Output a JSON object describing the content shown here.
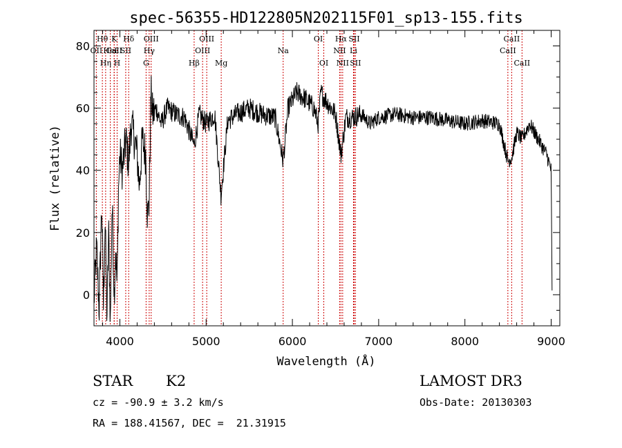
{
  "chart_data": {
    "type": "line",
    "title": "spec-56355-HD122805N202115F01_sp13-155.fits",
    "xlabel": "Wavelength (Å)",
    "ylabel": "Flux (relative)",
    "xlim": [
      3700,
      9100
    ],
    "ylim": [
      -10,
      85
    ],
    "xticks": [
      4000,
      5000,
      6000,
      7000,
      8000,
      9000
    ],
    "yticks": [
      0,
      20,
      40,
      60,
      80
    ],
    "grid": false,
    "series": [
      {
        "x": [
          3700,
          3730,
          3760,
          3790,
          3810,
          3830,
          3850,
          3870,
          3890,
          3910,
          3935,
          3950,
          3968,
          3985,
          4000,
          4030,
          4070,
          4102,
          4130,
          4170,
          4200,
          4226,
          4260,
          4300,
          4320,
          4340,
          4360,
          4380,
          4420,
          4480,
          4550,
          4650,
          4750,
          4861,
          4920,
          5000,
          5100,
          5172,
          5250,
          5350,
          5500,
          5650,
          5800,
          5893,
          5950,
          6050,
          6150,
          6250,
          6300,
          6330,
          6400,
          6500,
          6563,
          6620,
          6700,
          6800,
          6900,
          7000,
          7200,
          7400,
          7600,
          7800,
          8000,
          8200,
          8400,
          8498,
          8542,
          8600,
          8662,
          8750,
          8850,
          8950,
          9000,
          9010
        ],
        "values": [
          -2,
          15,
          -5,
          30,
          -4,
          25,
          -8,
          20,
          -9,
          30,
          0,
          15,
          2,
          35,
          45,
          40,
          50,
          42,
          55,
          50,
          45,
          35,
          50,
          45,
          25,
          30,
          65,
          58,
          60,
          55,
          60,
          58,
          57,
          48,
          58,
          55,
          58,
          32,
          56,
          58,
          60,
          58,
          57,
          43,
          60,
          65,
          63,
          60,
          55,
          65,
          62,
          58,
          45,
          57,
          57,
          58,
          55,
          57,
          58,
          57,
          57,
          56,
          55,
          56,
          55,
          43,
          44,
          52,
          50,
          55,
          50,
          45,
          40,
          0
        ]
      }
    ],
    "line_markers": [
      {
        "name": "CaII",
        "label": "CaII",
        "x": 3934,
        "row": 1
      },
      {
        "name": "CaII-H",
        "label": "H",
        "x": 3968,
        "row": 2
      },
      {
        "name": "H-theta",
        "label": "Hθ",
        "x": 3797,
        "row": 0
      },
      {
        "name": "OII",
        "label": "OII",
        "x": 3727,
        "row": 1
      },
      {
        "name": "HeI",
        "label": "HeI",
        "x": 3889,
        "row": 1
      },
      {
        "name": "H-eta",
        "label": "Hη",
        "x": 3835,
        "row": 2
      },
      {
        "name": "K",
        "label": "K",
        "x": 3934,
        "row": 0
      },
      {
        "name": "SII-4068",
        "label": "SII",
        "x": 4068,
        "row": 1
      },
      {
        "name": "H-delta",
        "label": "Hδ",
        "x": 4102,
        "row": 0
      },
      {
        "name": "G",
        "label": "G",
        "x": 4304,
        "row": 2
      },
      {
        "name": "H-gamma",
        "label": "Hγ",
        "x": 4340,
        "row": 1
      },
      {
        "name": "OIII-4363",
        "label": "OIII",
        "x": 4363,
        "row": 0
      },
      {
        "name": "H-beta",
        "label": "Hβ",
        "x": 4861,
        "row": 2
      },
      {
        "name": "OIII-4959",
        "label": "OIII",
        "x": 4959,
        "row": 1
      },
      {
        "name": "OIII-5007",
        "label": "OIII",
        "x": 5007,
        "row": 0
      },
      {
        "name": "Mg",
        "label": "Mg",
        "x": 5175,
        "row": 2
      },
      {
        "name": "Na",
        "label": "Na",
        "x": 5893,
        "row": 1
      },
      {
        "name": "OI-6300",
        "label": "OI",
        "x": 6300,
        "row": 0
      },
      {
        "name": "OI-6364",
        "label": "OI",
        "x": 6364,
        "row": 2
      },
      {
        "name": "NII-6548",
        "label": "NII",
        "x": 6548,
        "row": 1
      },
      {
        "name": "H-alpha",
        "label": "Hα",
        "x": 6563,
        "row": 0
      },
      {
        "name": "NII-6583",
        "label": "NII",
        "x": 6583,
        "row": 2
      },
      {
        "name": "Li",
        "label": "Li",
        "x": 6708,
        "row": 1
      },
      {
        "name": "SII-6716",
        "label": "SII",
        "x": 6716,
        "row": 0
      },
      {
        "name": "SII-6731",
        "label": "SII",
        "x": 6731,
        "row": 2
      },
      {
        "name": "CaII-8498",
        "label": "CaII",
        "x": 8498,
        "row": 1
      },
      {
        "name": "CaII-8542",
        "label": "CaII",
        "x": 8542,
        "row": 0
      },
      {
        "name": "CaII-8662",
        "label": "CaII",
        "x": 8662,
        "row": 2
      }
    ],
    "marker_color": "#cc0000",
    "line_color": "#000000"
  },
  "info": {
    "object_class": "STAR",
    "subclass": "K2",
    "survey": "LAMOST DR3",
    "cz": "cz = -90.9 ± 3.2 km/s",
    "obs_date": "Obs-Date: 20130303",
    "coords": "RA = 188.41567, DEC =  21.31915"
  }
}
